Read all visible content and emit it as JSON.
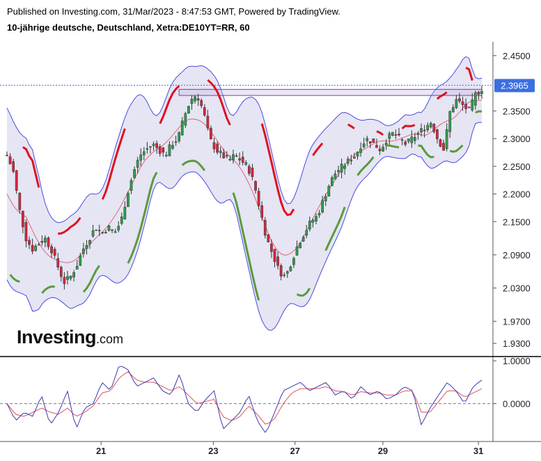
{
  "header": {
    "published": "Published on Investing.com, 31/Mar/2023 - 8:47:53 GMT, Powered by TradingView.",
    "instrument": "10-jährige deutsche, Deutschland, Xetra:DE10YT=RR, 60"
  },
  "logo": {
    "main": "Investing",
    "suffix": ".com"
  },
  "chart_data": [
    {
      "type": "candlestick",
      "title": "",
      "y_ticks": [
        "2.4500",
        "2.3500",
        "2.3000",
        "2.2500",
        "2.2000",
        "2.1500",
        "2.0900",
        "2.0300",
        "1.9700",
        "1.9300"
      ],
      "ylim": [
        1.915,
        2.475
      ],
      "last_price": "2.3965",
      "x_ticks": [
        "21",
        "23",
        "27",
        "29",
        "31"
      ],
      "colors": {
        "up": "#2e9e4a",
        "down": "#d7263d",
        "band_fill": "#dcdcf0",
        "band_line": "#4a4adf",
        "mid_line": "#e0656f",
        "supertrend_down": "#e0101f",
        "supertrend_up": "#5a9a3c",
        "price_line": "#3b6fe0",
        "resistance": "#7b3fa0"
      },
      "key_levels": {
        "band_middle_start": 2.23,
        "resistance_high": 2.389,
        "resistance_low": 2.378
      },
      "price_path": [
        2.27,
        2.24,
        2.17,
        2.12,
        2.1,
        2.11,
        2.12,
        2.1,
        2.07,
        2.04,
        2.05,
        2.07,
        2.1,
        2.12,
        2.14,
        2.13,
        2.14,
        2.13,
        2.15,
        2.2,
        2.24,
        2.27,
        2.28,
        2.29,
        2.28,
        2.27,
        2.29,
        2.3,
        2.34,
        2.37,
        2.38,
        2.35,
        2.3,
        2.28,
        2.27,
        2.26,
        2.27,
        2.26,
        2.25,
        2.22,
        2.17,
        2.12,
        2.09,
        2.06,
        2.05,
        2.08,
        2.11,
        2.13,
        2.15,
        2.16,
        2.19,
        2.22,
        2.24,
        2.25,
        2.26,
        2.27,
        2.29,
        2.3,
        2.29,
        2.28,
        2.3,
        2.31,
        2.3,
        2.29,
        2.3,
        2.31,
        2.32,
        2.33,
        2.3,
        2.28,
        2.35,
        2.37,
        2.36,
        2.35,
        2.38,
        2.39
      ]
    },
    {
      "type": "line",
      "title": "",
      "y_ticks": [
        "1.0000",
        "0.0000"
      ],
      "ylim": [
        -0.85,
        1.05
      ],
      "x_ticks": [
        "21",
        "23",
        "27",
        "29",
        "31"
      ],
      "colors": {
        "fast": "#3a3ab0",
        "slow": "#e0505a",
        "zero": "#777777"
      },
      "fast_path": [
        0.0,
        -0.4,
        -0.2,
        -0.3,
        0.2,
        -0.5,
        -0.2,
        0.3,
        -0.6,
        -0.1,
        0.0,
        0.5,
        0.3,
        0.9,
        0.8,
        0.4,
        0.5,
        0.6,
        0.3,
        0.2,
        0.7,
        0.0,
        -0.2,
        0.1,
        0.3,
        -0.6,
        -0.4,
        -0.2,
        0.2,
        -0.4,
        -0.7,
        -0.2,
        0.3,
        0.4,
        0.5,
        0.3,
        0.4,
        0.5,
        0.2,
        0.3,
        0.1,
        0.4,
        0.2,
        0.3,
        0.1,
        0.2,
        0.4,
        0.3,
        -0.5,
        -0.1,
        0.2,
        0.5,
        0.3,
        0.0,
        0.4,
        0.55
      ],
      "slow_path": [
        0.0,
        -0.25,
        -0.3,
        -0.2,
        -0.1,
        -0.2,
        -0.25,
        -0.1,
        -0.3,
        -0.2,
        -0.05,
        0.25,
        0.3,
        0.6,
        0.75,
        0.55,
        0.5,
        0.5,
        0.4,
        0.3,
        0.4,
        0.2,
        0.0,
        0.05,
        0.1,
        -0.3,
        -0.4,
        -0.3,
        -0.05,
        -0.25,
        -0.5,
        -0.35,
        0.0,
        0.25,
        0.35,
        0.35,
        0.35,
        0.4,
        0.3,
        0.28,
        0.2,
        0.28,
        0.25,
        0.25,
        0.2,
        0.2,
        0.3,
        0.3,
        -0.2,
        -0.2,
        0.05,
        0.3,
        0.3,
        0.15,
        0.25,
        0.35
      ]
    }
  ]
}
